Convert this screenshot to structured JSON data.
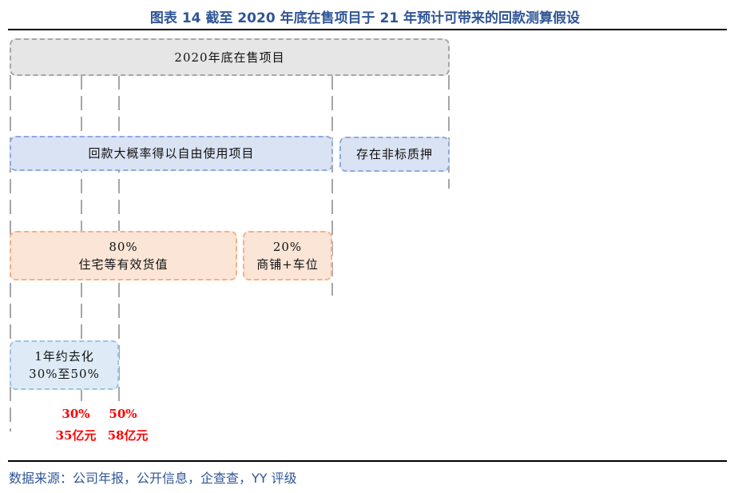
{
  "title": "图表 14 截至 2020 年底在售项目于 21 年预计可带来的回款测算假设",
  "boxes": {
    "top": "2020年底在售项目",
    "usable": "回款大概率得以自由使用项目",
    "pledged": "存在非标质押",
    "residential_pct": "80%",
    "residential_label": "住宅等有效货值",
    "commercial_pct": "20%",
    "commercial_label": "商铺+车位",
    "destock_line1": "1年约去化",
    "destock_line2": "30%至50%"
  },
  "results": [
    {
      "pct": "30%",
      "amount": "35亿元"
    },
    {
      "pct": "50%",
      "amount": "58亿元"
    }
  ],
  "colors": {
    "title": "#2f5597",
    "result": "#ff0000"
  },
  "source": "数据来源：公司年报，公开信息，企查查，YY 评级"
}
